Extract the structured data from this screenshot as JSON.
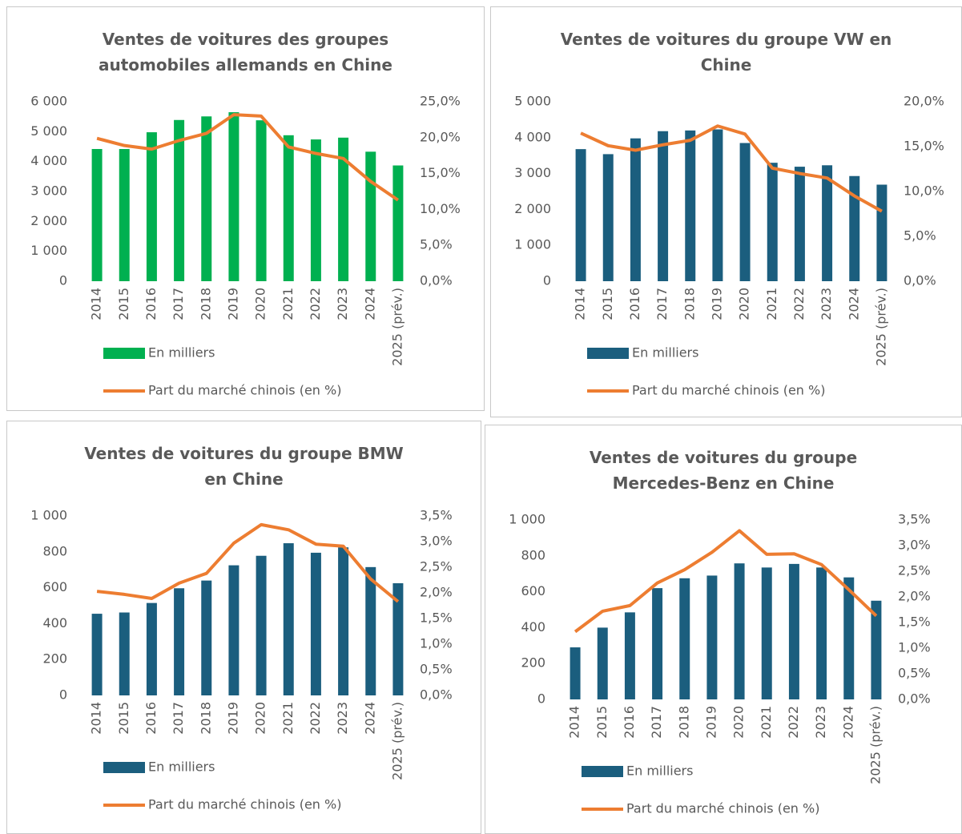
{
  "chart_data": [
    {
      "type": "combo",
      "title": "Ventes de voitures des groupes automobiles allemands en Chine",
      "categories": [
        "2014",
        "2015",
        "2016",
        "2017",
        "2018",
        "2019",
        "2020",
        "2021",
        "2022",
        "2023",
        "2024",
        "2025 (prév.)"
      ],
      "series": [
        {
          "name": "En milliers",
          "type": "bar",
          "color": "#00b050",
          "values": [
            4420,
            4420,
            4980,
            5390,
            5510,
            5650,
            5380,
            4880,
            4740,
            4800,
            4330,
            3870
          ]
        },
        {
          "name": "Part du marché chinois (en %)",
          "type": "line",
          "axis": "y2",
          "color": "#ed7d31",
          "values": [
            19.9,
            18.9,
            18.4,
            19.6,
            20.6,
            23.2,
            23.0,
            18.7,
            17.8,
            17.1,
            13.9,
            11.3
          ]
        }
      ],
      "ylim": [
        0,
        6000
      ],
      "yticks": [
        0,
        {
          "value": 1000,
          "label": "1 000"
        },
        {
          "value": 2000,
          "label": "2 000"
        },
        {
          "value": 3000,
          "label": "3 000"
        },
        {
          "value": 4000,
          "label": "4 000"
        },
        {
          "value": 5000,
          "label": "5 000"
        },
        {
          "value": 6000,
          "label": "6 000"
        }
      ],
      "y2lim": [
        0,
        25
      ],
      "y2ticks": [
        {
          "value": 0,
          "label": "0,0%"
        },
        {
          "value": 5,
          "label": "5,0%"
        },
        {
          "value": 10,
          "label": "10,0%"
        },
        {
          "value": 15,
          "label": "15,0%"
        },
        {
          "value": 20,
          "label": "20,0%"
        },
        {
          "value": 25,
          "label": "25,0%"
        }
      ]
    },
    {
      "type": "combo",
      "title": "Ventes de voitures du groupe VW en Chine",
      "categories": [
        "2014",
        "2015",
        "2016",
        "2017",
        "2018",
        "2019",
        "2020",
        "2021",
        "2022",
        "2023",
        "2024",
        "2025 (prév.)"
      ],
      "series": [
        {
          "name": "En milliers",
          "type": "bar",
          "color": "#1b5e7e",
          "values": [
            3680,
            3540,
            3980,
            4180,
            4200,
            4230,
            3850,
            3300,
            3190,
            3230,
            2930,
            2690
          ]
        },
        {
          "name": "Part du marché chinois (en %)",
          "type": "line",
          "axis": "y2",
          "color": "#ed7d31",
          "values": [
            16.5,
            15.1,
            14.6,
            15.2,
            15.7,
            17.3,
            16.4,
            12.6,
            12.0,
            11.5,
            9.5,
            7.8
          ]
        }
      ],
      "ylim": [
        0,
        5000
      ],
      "yticks": [
        0,
        {
          "value": 1000,
          "label": "1 000"
        },
        {
          "value": 2000,
          "label": "2 000"
        },
        {
          "value": 3000,
          "label": "3 000"
        },
        {
          "value": 4000,
          "label": "4 000"
        },
        {
          "value": 5000,
          "label": "5 000"
        }
      ],
      "y2lim": [
        0,
        20
      ],
      "y2ticks": [
        {
          "value": 0,
          "label": "0,0%"
        },
        {
          "value": 5,
          "label": "5,0%"
        },
        {
          "value": 10,
          "label": "10,0%"
        },
        {
          "value": 15,
          "label": "15,0%"
        },
        {
          "value": 20,
          "label": "20,0%"
        }
      ]
    },
    {
      "type": "combo",
      "title": "Ventes de voitures du groupe BMW en Chine",
      "categories": [
        "2014",
        "2015",
        "2016",
        "2017",
        "2018",
        "2019",
        "2020",
        "2021",
        "2022",
        "2023",
        "2024",
        "2025 (prév.)"
      ],
      "series": [
        {
          "name": "En milliers",
          "type": "bar",
          "color": "#1b5e7e",
          "values": [
            455,
            462,
            515,
            597,
            640,
            725,
            778,
            848,
            795,
            825,
            715,
            625
          ]
        },
        {
          "name": "Part du marché chinois (en %)",
          "type": "line",
          "axis": "y2",
          "color": "#ed7d31",
          "values": [
            2.03,
            1.97,
            1.89,
            2.19,
            2.38,
            2.97,
            3.33,
            3.23,
            2.95,
            2.91,
            2.27,
            1.83
          ]
        }
      ],
      "ylim": [
        0,
        1000
      ],
      "yticks": [
        0,
        200,
        400,
        600,
        800,
        {
          "value": 1000,
          "label": "1 000"
        }
      ],
      "y2lim": [
        0,
        3.5
      ],
      "y2ticks": [
        {
          "value": 0,
          "label": "0,0%"
        },
        {
          "value": 0.5,
          "label": "0,5%"
        },
        {
          "value": 1,
          "label": "1,0%"
        },
        {
          "value": 1.5,
          "label": "1,5%"
        },
        {
          "value": 2,
          "label": "2,0%"
        },
        {
          "value": 2.5,
          "label": "2,5%"
        },
        {
          "value": 3,
          "label": "3,0%"
        },
        {
          "value": 3.5,
          "label": "3,5%"
        }
      ]
    },
    {
      "type": "combo",
      "title": "Ventes de voitures du groupe Mercedes-Benz en Chine",
      "categories": [
        "2014",
        "2015",
        "2016",
        "2017",
        "2018",
        "2019",
        "2020",
        "2021",
        "2022",
        "2023",
        "2024",
        "2025 (prév.)"
      ],
      "series": [
        {
          "name": "En milliers",
          "type": "bar",
          "color": "#1b5e7e",
          "values": [
            290,
            400,
            485,
            620,
            675,
            690,
            758,
            735,
            755,
            735,
            680,
            550
          ]
        },
        {
          "name": "Part du marché chinois (en %)",
          "type": "line",
          "axis": "y2",
          "color": "#ed7d31",
          "values": [
            1.32,
            1.72,
            1.83,
            2.27,
            2.53,
            2.87,
            3.29,
            2.83,
            2.84,
            2.63,
            2.14,
            1.63
          ]
        }
      ],
      "ylim": [
        0,
        1000
      ],
      "yticks": [
        0,
        200,
        400,
        600,
        800,
        {
          "value": 1000,
          "label": "1 000"
        }
      ],
      "y2lim": [
        0,
        3.5
      ],
      "y2ticks": [
        {
          "value": 0,
          "label": "0,0%"
        },
        {
          "value": 0.5,
          "label": "0,5%"
        },
        {
          "value": 1,
          "label": "1,0%"
        },
        {
          "value": 1.5,
          "label": "1,5%"
        },
        {
          "value": 2,
          "label": "2,0%"
        },
        {
          "value": 2.5,
          "label": "2,5%"
        },
        {
          "value": 3,
          "label": "3,0%"
        },
        {
          "value": 3.5,
          "label": "3,5%"
        }
      ]
    }
  ]
}
